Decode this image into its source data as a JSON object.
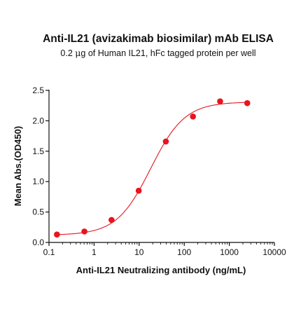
{
  "chart_data": {
    "type": "scatter",
    "title": "Anti-IL21 (avizakimab biosimilar) mAb ELISA",
    "subtitle_pre": "0.2 ",
    "subtitle_mu": "μ",
    "subtitle_post": "g of Human IL21, hFc tagged protein per well",
    "xlabel": "Anti-IL21 Neutralizing antibody (ng/mL)",
    "ylabel": "Mean Abs.(OD450)",
    "x_scale": "log",
    "xlim": [
      0.1,
      10000
    ],
    "ylim": [
      0,
      2.5
    ],
    "x_ticks": [
      0.1,
      1,
      10,
      100,
      1000,
      10000
    ],
    "x_tick_labels": [
      "0.1",
      "1",
      "10",
      "100",
      "1000",
      "10000"
    ],
    "y_ticks": [
      0,
      0.5,
      1,
      1.5,
      2,
      2.5
    ],
    "y_tick_labels": [
      "0.0",
      "0.5",
      "1.0",
      "1.5",
      "2.0",
      "2.5"
    ],
    "grid": false,
    "color": "#e8141e",
    "points": {
      "x": [
        0.15,
        0.61,
        2.44,
        9.77,
        39.06,
        156.25,
        625,
        2500
      ],
      "y": [
        0.13,
        0.18,
        0.37,
        0.85,
        1.66,
        2.07,
        2.32,
        2.29
      ]
    },
    "fit_curve": {
      "model": "4PL",
      "bottom": 0.12,
      "top": 2.31,
      "ec50": 18,
      "hill": 1.15
    }
  }
}
